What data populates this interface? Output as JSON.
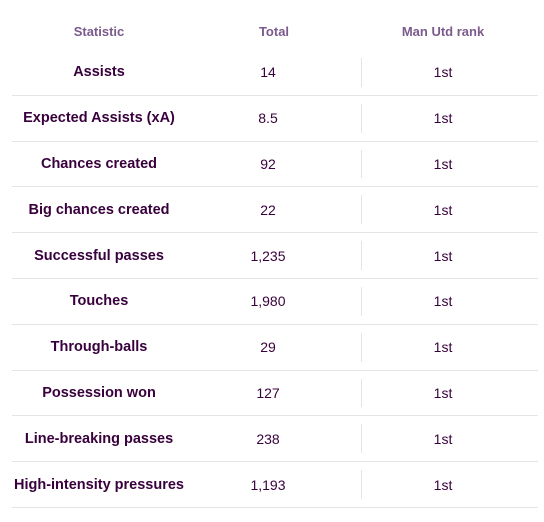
{
  "headers": {
    "statistic": "Statistic",
    "total": "Total",
    "rank": "Man Utd rank"
  },
  "rows": [
    {
      "statistic": "Assists",
      "total": "14",
      "rank": "1st"
    },
    {
      "statistic": "Expected Assists (xA)",
      "total": "8.5",
      "rank": "1st"
    },
    {
      "statistic": "Chances created",
      "total": "92",
      "rank": "1st"
    },
    {
      "statistic": "Big chances created",
      "total": "22",
      "rank": "1st"
    },
    {
      "statistic": "Successful passes",
      "total": "1,235",
      "rank": "1st"
    },
    {
      "statistic": "Touches",
      "total": "1,980",
      "rank": "1st"
    },
    {
      "statistic": "Through-balls",
      "total": "29",
      "rank": "1st"
    },
    {
      "statistic": "Possession won",
      "total": "127",
      "rank": "1st"
    },
    {
      "statistic": "Line-breaking passes",
      "total": "238",
      "rank": "1st"
    },
    {
      "statistic": "High-intensity pressures",
      "total": "1,193",
      "rank": "1st"
    }
  ],
  "colors": {
    "text": "#38003c",
    "header_text": "#7b5a8c",
    "divider": "#e6e3e8"
  }
}
